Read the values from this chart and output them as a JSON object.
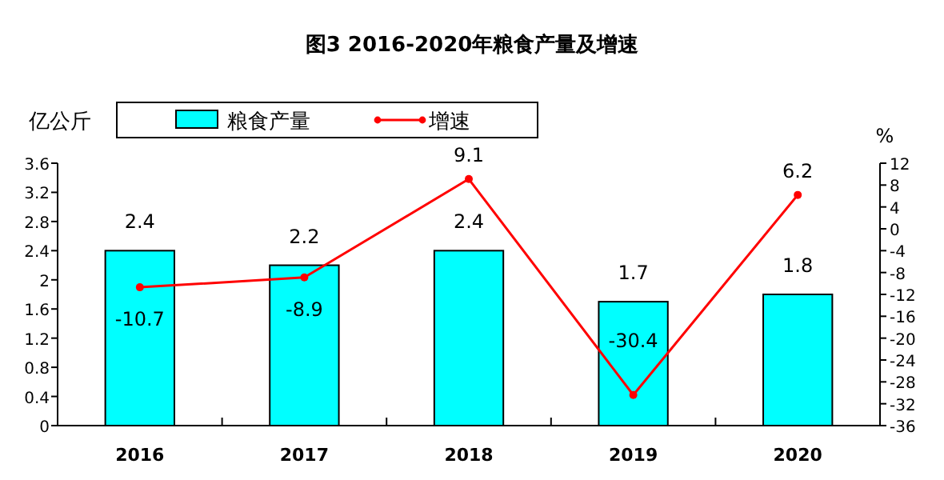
{
  "chart_data": {
    "type": "bar",
    "title": "图3  2016-2020年粮食产量及增速",
    "categories": [
      "2016",
      "2017",
      "2018",
      "2019",
      "2020"
    ],
    "ylabel": "亿公斤",
    "y2label": "%",
    "series": [
      {
        "name": "粮食产量",
        "color": "#00ffff",
        "values": [
          2.4,
          2.2,
          2.4,
          1.7,
          1.8
        ]
      },
      {
        "name": "增速",
        "type": "line",
        "axis": "y2",
        "color": "#ff0000",
        "marker": "circle",
        "values": [
          -10.7,
          -8.9,
          9.1,
          -30.4,
          6.2
        ]
      }
    ],
    "ylim": [
      0,
      3.6
    ],
    "yticks": [
      0,
      0.4,
      0.8,
      1.2,
      1.6,
      2,
      2.4,
      2.8,
      3.2,
      3.6
    ],
    "y2lim": [
      -36,
      12
    ],
    "y2ticks": [
      -36,
      -32,
      -28,
      -24,
      -20,
      -16,
      -12,
      -8,
      -4,
      0,
      4,
      8,
      12
    ],
    "data_labels": true,
    "legend": "top",
    "grid": false
  }
}
